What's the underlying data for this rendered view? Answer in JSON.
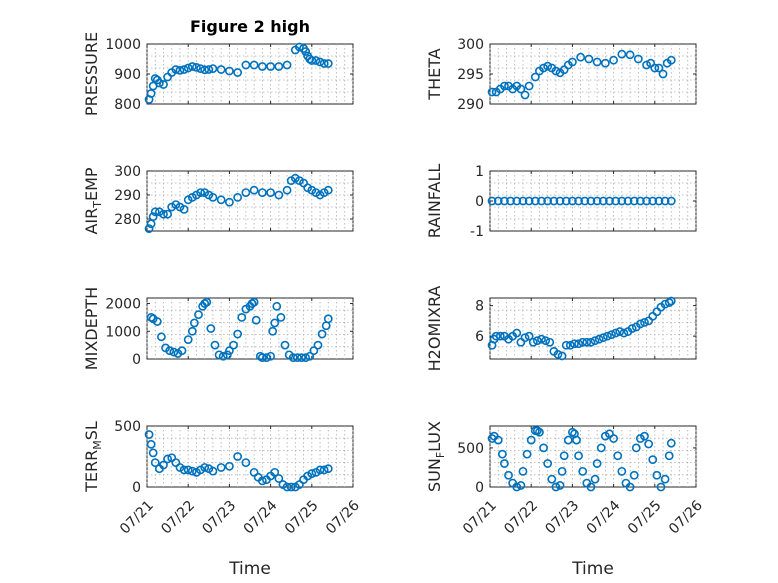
{
  "figure": {
    "title": "Figure 2 high",
    "xlabel": "Time",
    "xtick_labels": [
      "07/21",
      "07/22",
      "07/23",
      "07/24",
      "07/25",
      "07/26"
    ],
    "marker_color": "#0072BD"
  },
  "chart_data": [
    {
      "type": "scatter",
      "title": "Figure 2 high",
      "ylabel": "PRESSURE",
      "ylim": [
        800,
        1000
      ],
      "yticks": [
        800,
        900,
        1000
      ],
      "grid": true,
      "x": [
        0.05,
        0.1,
        0.15,
        0.2,
        0.25,
        0.3,
        0.4,
        0.5,
        0.6,
        0.7,
        0.8,
        0.9,
        1.0,
        1.1,
        1.2,
        1.3,
        1.4,
        1.5,
        1.6,
        1.8,
        2.0,
        2.2,
        2.4,
        2.6,
        2.8,
        3.0,
        3.2,
        3.4,
        3.6,
        3.7,
        3.8,
        3.85,
        3.9,
        3.95,
        4.0,
        4.1,
        4.2,
        4.3,
        4.4
      ],
      "y": [
        815,
        835,
        860,
        885,
        880,
        870,
        865,
        890,
        905,
        915,
        912,
        915,
        920,
        925,
        922,
        918,
        914,
        915,
        918,
        915,
        910,
        905,
        930,
        930,
        925,
        925,
        925,
        930,
        980,
        990,
        985,
        975,
        960,
        950,
        945,
        945,
        940,
        935,
        935
      ]
    },
    {
      "type": "scatter",
      "title": "",
      "ylabel": "THETA",
      "ylim": [
        290,
        300
      ],
      "yticks": [
        290,
        295,
        300
      ],
      "grid": true,
      "x": [
        0.05,
        0.15,
        0.25,
        0.35,
        0.45,
        0.55,
        0.65,
        0.75,
        0.85,
        0.95,
        1.1,
        1.2,
        1.3,
        1.4,
        1.5,
        1.6,
        1.7,
        1.8,
        1.9,
        2.0,
        2.2,
        2.4,
        2.6,
        2.8,
        3.0,
        3.2,
        3.4,
        3.6,
        3.8,
        3.9,
        4.0,
        4.1,
        4.2,
        4.3,
        4.4
      ],
      "y": [
        292,
        292,
        292.5,
        293,
        293,
        292.5,
        293,
        292.5,
        291.5,
        293,
        294.5,
        295.5,
        296,
        296.3,
        296,
        295.5,
        295.2,
        295.7,
        296.5,
        297,
        297.8,
        297.5,
        297,
        296.8,
        297.3,
        298.3,
        298.2,
        297.5,
        296.5,
        296.8,
        296,
        296,
        295,
        296.8,
        297.3
      ]
    },
    {
      "type": "scatter",
      "title": "",
      "ylabel": "AIR_TEMP",
      "ylim": [
        275,
        300
      ],
      "yticks": [
        280,
        290,
        300
      ],
      "grid": true,
      "x": [
        0.05,
        0.1,
        0.15,
        0.2,
        0.3,
        0.4,
        0.5,
        0.6,
        0.7,
        0.8,
        0.9,
        1.0,
        1.1,
        1.2,
        1.3,
        1.4,
        1.5,
        1.6,
        1.8,
        2.0,
        2.2,
        2.4,
        2.6,
        2.8,
        3.0,
        3.2,
        3.4,
        3.5,
        3.6,
        3.7,
        3.8,
        3.9,
        4.0,
        4.1,
        4.2,
        4.3,
        4.4
      ],
      "y": [
        276,
        278,
        281,
        283,
        283,
        282,
        282,
        285,
        286,
        285,
        284,
        288,
        289,
        290,
        291,
        291,
        290,
        289,
        288,
        287,
        289,
        291,
        292,
        291,
        291,
        290,
        292,
        296,
        297,
        296,
        295,
        293,
        292,
        291,
        290,
        291,
        292
      ]
    },
    {
      "type": "scatter",
      "title": "",
      "ylabel": "RAINFALL",
      "ylim": [
        -1,
        1
      ],
      "yticks": [
        -1,
        0,
        1
      ],
      "grid": true,
      "x": [
        0.05,
        0.2,
        0.35,
        0.5,
        0.65,
        0.8,
        0.95,
        1.1,
        1.25,
        1.4,
        1.55,
        1.7,
        1.85,
        2.0,
        2.15,
        2.3,
        2.45,
        2.6,
        2.75,
        2.9,
        3.05,
        3.2,
        3.35,
        3.5,
        3.65,
        3.8,
        3.95,
        4.1,
        4.25,
        4.4
      ],
      "y": [
        0,
        0,
        0,
        0,
        0,
        0,
        0,
        0,
        0,
        0,
        0,
        0,
        0,
        0,
        0,
        0,
        0,
        0,
        0,
        0,
        0,
        0,
        0,
        0,
        0,
        0,
        0,
        0,
        0,
        0
      ]
    },
    {
      "type": "scatter",
      "title": "",
      "ylabel": "MIXDEPTH",
      "ylim": [
        0,
        2200
      ],
      "yticks": [
        0,
        1000,
        2000
      ],
      "grid": true,
      "x": [
        0.1,
        0.15,
        0.25,
        0.35,
        0.45,
        0.55,
        0.65,
        0.75,
        0.85,
        1.0,
        1.1,
        1.15,
        1.25,
        1.35,
        1.4,
        1.45,
        1.55,
        1.65,
        1.75,
        1.85,
        1.95,
        2.0,
        2.1,
        2.2,
        2.3,
        2.4,
        2.5,
        2.55,
        2.6,
        2.65,
        2.75,
        2.8,
        2.9,
        3.0,
        3.05,
        3.1,
        3.15,
        3.25,
        3.35,
        3.45,
        3.55,
        3.65,
        3.75,
        3.85,
        3.95,
        4.05,
        4.15,
        4.25,
        4.35,
        4.4
      ],
      "y": [
        1500,
        1450,
        1350,
        800,
        400,
        300,
        250,
        200,
        300,
        700,
        1000,
        1300,
        1600,
        1900,
        2000,
        2050,
        1100,
        500,
        150,
        100,
        150,
        300,
        500,
        900,
        1500,
        1800,
        1900,
        2000,
        2050,
        1400,
        100,
        50,
        50,
        100,
        1000,
        1300,
        1900,
        1500,
        500,
        150,
        50,
        50,
        50,
        50,
        100,
        300,
        500,
        900,
        1200,
        1450
      ]
    },
    {
      "type": "scatter",
      "title": "",
      "ylabel": "H2OMIXRA",
      "ylim": [
        4.5,
        8.5
      ],
      "yticks": [
        6,
        8
      ],
      "grid": true,
      "x": [
        0.05,
        0.1,
        0.15,
        0.25,
        0.35,
        0.45,
        0.55,
        0.65,
        0.75,
        0.85,
        0.95,
        1.05,
        1.15,
        1.25,
        1.35,
        1.45,
        1.55,
        1.65,
        1.75,
        1.85,
        1.95,
        2.05,
        2.15,
        2.25,
        2.35,
        2.45,
        2.55,
        2.65,
        2.75,
        2.85,
        2.95,
        3.05,
        3.15,
        3.25,
        3.35,
        3.45,
        3.55,
        3.65,
        3.75,
        3.85,
        3.95,
        4.05,
        4.15,
        4.25,
        4.35,
        4.4
      ],
      "y": [
        5.4,
        5.8,
        6,
        6,
        6,
        5.8,
        6,
        6.2,
        5.6,
        5.9,
        6,
        5.6,
        5.7,
        5.8,
        5.7,
        5.6,
        5,
        4.8,
        4.7,
        5.4,
        5.4,
        5.5,
        5.5,
        5.6,
        5.6,
        5.6,
        5.7,
        5.8,
        5.9,
        6,
        6.1,
        6.2,
        6.3,
        6.2,
        6.3,
        6.5,
        6.6,
        6.8,
        6.9,
        7,
        7.3,
        7.6,
        7.9,
        8.1,
        8.2,
        8.3
      ]
    },
    {
      "type": "scatter",
      "title": "",
      "ylabel": "TERR_MSL",
      "ylim": [
        0,
        500
      ],
      "yticks": [
        0,
        500
      ],
      "grid": true,
      "x": [
        0.05,
        0.1,
        0.15,
        0.2,
        0.3,
        0.4,
        0.5,
        0.6,
        0.7,
        0.8,
        0.9,
        1.0,
        1.1,
        1.2,
        1.3,
        1.4,
        1.5,
        1.6,
        1.8,
        2.0,
        2.2,
        2.4,
        2.6,
        2.7,
        2.8,
        2.9,
        3.0,
        3.1,
        3.2,
        3.3,
        3.4,
        3.5,
        3.6,
        3.7,
        3.8,
        3.9,
        4.0,
        4.1,
        4.2,
        4.3,
        4.4
      ],
      "y": [
        430,
        350,
        280,
        200,
        150,
        180,
        230,
        240,
        200,
        160,
        140,
        140,
        130,
        120,
        140,
        160,
        150,
        130,
        160,
        170,
        250,
        200,
        120,
        80,
        50,
        60,
        90,
        120,
        70,
        20,
        0,
        0,
        0,
        20,
        60,
        90,
        110,
        120,
        140,
        140,
        150
      ]
    },
    {
      "type": "scatter",
      "title": "",
      "ylabel": "SUN_FLUX",
      "ylim": [
        0,
        780
      ],
      "yticks": [
        0,
        500
      ],
      "grid": true,
      "x": [
        0.05,
        0.1,
        0.2,
        0.3,
        0.35,
        0.45,
        0.55,
        0.65,
        0.75,
        0.8,
        0.9,
        1.0,
        1.1,
        1.15,
        1.2,
        1.3,
        1.4,
        1.5,
        1.6,
        1.7,
        1.75,
        1.8,
        1.9,
        2.0,
        2.05,
        2.1,
        2.15,
        2.25,
        2.35,
        2.45,
        2.55,
        2.6,
        2.7,
        2.8,
        2.9,
        3.0,
        3.1,
        3.2,
        3.3,
        3.4,
        3.5,
        3.55,
        3.65,
        3.75,
        3.85,
        3.95,
        4.05,
        4.15,
        4.25,
        4.35,
        4.4
      ],
      "y": [
        620,
        650,
        600,
        420,
        300,
        150,
        50,
        0,
        20,
        200,
        420,
        600,
        720,
        720,
        700,
        500,
        300,
        100,
        0,
        20,
        200,
        400,
        600,
        700,
        680,
        600,
        400,
        200,
        50,
        0,
        100,
        300,
        500,
        650,
        680,
        620,
        400,
        200,
        50,
        0,
        150,
        500,
        620,
        650,
        550,
        350,
        150,
        0,
        100,
        400,
        560
      ]
    }
  ]
}
